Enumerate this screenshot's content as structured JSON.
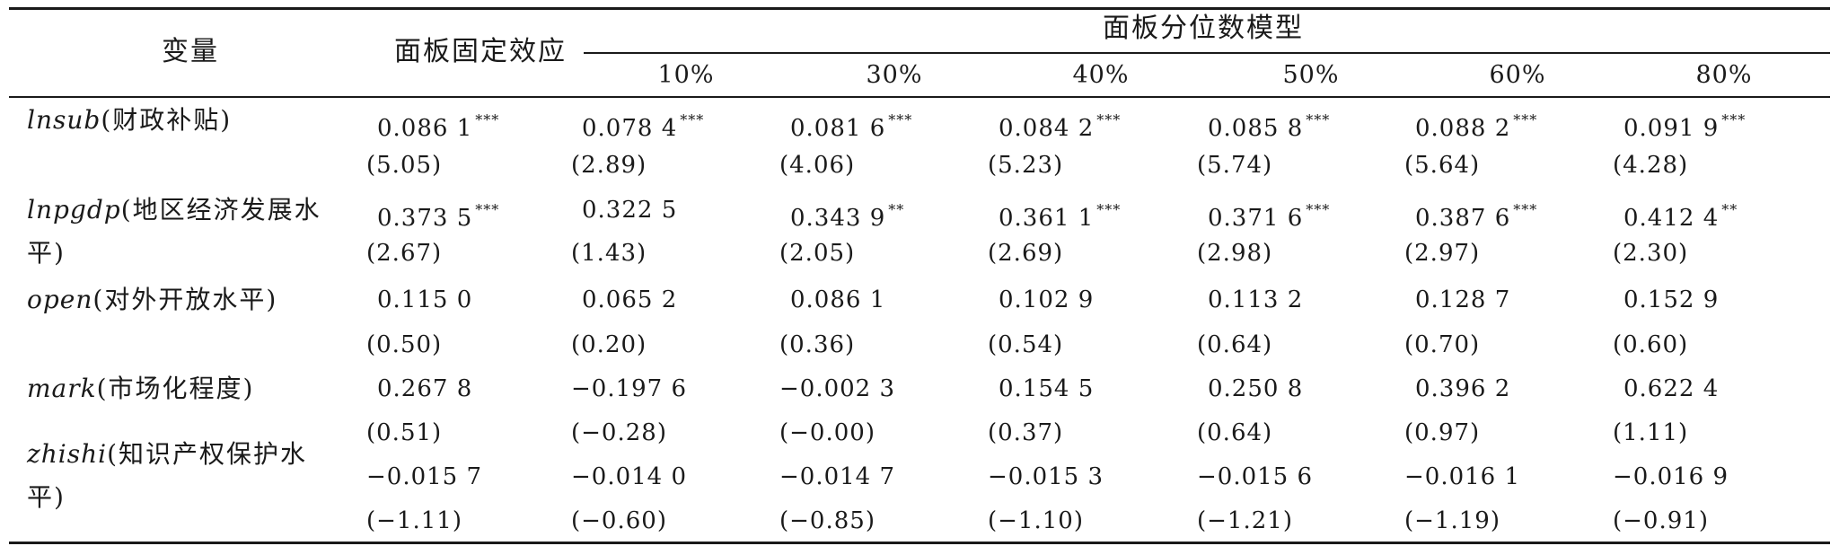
{
  "header": {
    "variable": "变量",
    "fixed_effect": "面板固定效应",
    "quantile_model": "面板分位数模型",
    "quantiles": [
      "10%",
      "30%",
      "40%",
      "50%",
      "60%",
      "80%"
    ]
  },
  "variables": [
    {
      "code": "lnsub",
      "label": "(财政补贴)"
    },
    {
      "code": "lnpgdp",
      "label": "(地区经济发展水",
      "label_cont": "平)"
    },
    {
      "code": "open",
      "label": "(对外开放水平)"
    },
    {
      "code": "mark",
      "label": "(市场化程度)"
    },
    {
      "code": "zhishi",
      "label": "(知识产权保护水",
      "label_cont": "平)"
    }
  ],
  "rows": [
    {
      "cells": [
        {
          "text": "0.086 1",
          "stars": "***"
        },
        {
          "text": "0.078 4",
          "stars": "***"
        },
        {
          "text": "0.081 6",
          "stars": "***"
        },
        {
          "text": "0.084 2",
          "stars": "***"
        },
        {
          "text": "0.085 8",
          "stars": "***"
        },
        {
          "text": "0.088 2",
          "stars": "***"
        },
        {
          "text": "0.091 9",
          "stars": "***"
        }
      ]
    },
    {
      "cells": [
        {
          "text": "(5.05)"
        },
        {
          "text": "(2.89)"
        },
        {
          "text": "(4.06)"
        },
        {
          "text": "(5.23)"
        },
        {
          "text": "(5.74)"
        },
        {
          "text": "(5.64)"
        },
        {
          "text": "(4.28)"
        }
      ]
    },
    {
      "cells": [
        {
          "text": "0.373 5",
          "stars": "***"
        },
        {
          "text": "0.322 5"
        },
        {
          "text": "0.343 9",
          "stars": "**"
        },
        {
          "text": "0.361 1",
          "stars": "***"
        },
        {
          "text": "0.371 6",
          "stars": "***"
        },
        {
          "text": "0.387 6",
          "stars": "***"
        },
        {
          "text": "0.412 4",
          "stars": "**"
        }
      ]
    },
    {
      "cells": [
        {
          "text": "(2.67)"
        },
        {
          "text": "(1.43)"
        },
        {
          "text": "(2.05)"
        },
        {
          "text": "(2.69)"
        },
        {
          "text": "(2.98)"
        },
        {
          "text": "(2.97)"
        },
        {
          "text": "(2.30)"
        }
      ]
    },
    {
      "cells": [
        {
          "text": "0.115 0"
        },
        {
          "text": "0.065 2"
        },
        {
          "text": "0.086 1"
        },
        {
          "text": "0.102 9"
        },
        {
          "text": "0.113 2"
        },
        {
          "text": "0.128 7"
        },
        {
          "text": "0.152 9"
        }
      ]
    },
    {
      "cells": [
        {
          "text": "(0.50)"
        },
        {
          "text": "(0.20)"
        },
        {
          "text": "(0.36)"
        },
        {
          "text": "(0.54)"
        },
        {
          "text": "(0.64)"
        },
        {
          "text": "(0.70)"
        },
        {
          "text": "(0.60)"
        }
      ]
    },
    {
      "cells": [
        {
          "text": "0.267 8"
        },
        {
          "text": "−0.197 6"
        },
        {
          "text": "−0.002 3"
        },
        {
          "text": "0.154 5"
        },
        {
          "text": "0.250 8"
        },
        {
          "text": "0.396 2"
        },
        {
          "text": "0.622 4"
        }
      ]
    },
    {
      "cells": [
        {
          "text": "(0.51)"
        },
        {
          "text": "(−0.28)"
        },
        {
          "text": "(−0.00)"
        },
        {
          "text": "(0.37)"
        },
        {
          "text": "(0.64)"
        },
        {
          "text": "(0.97)"
        },
        {
          "text": "(1.11)"
        }
      ]
    },
    {
      "cells": [
        {
          "text": "−0.015 7"
        },
        {
          "text": "−0.014 0"
        },
        {
          "text": "−0.014 7"
        },
        {
          "text": "−0.015 3"
        },
        {
          "text": "−0.015 6"
        },
        {
          "text": "−0.016 1"
        },
        {
          "text": "−0.016 9"
        }
      ]
    },
    {
      "cells": [
        {
          "text": "(−1.11)"
        },
        {
          "text": "(−0.60)"
        },
        {
          "text": "(−0.85)"
        },
        {
          "text": "(−1.10)"
        },
        {
          "text": "(−1.21)"
        },
        {
          "text": "(−1.19)"
        },
        {
          "text": "(−0.91)"
        }
      ]
    }
  ]
}
